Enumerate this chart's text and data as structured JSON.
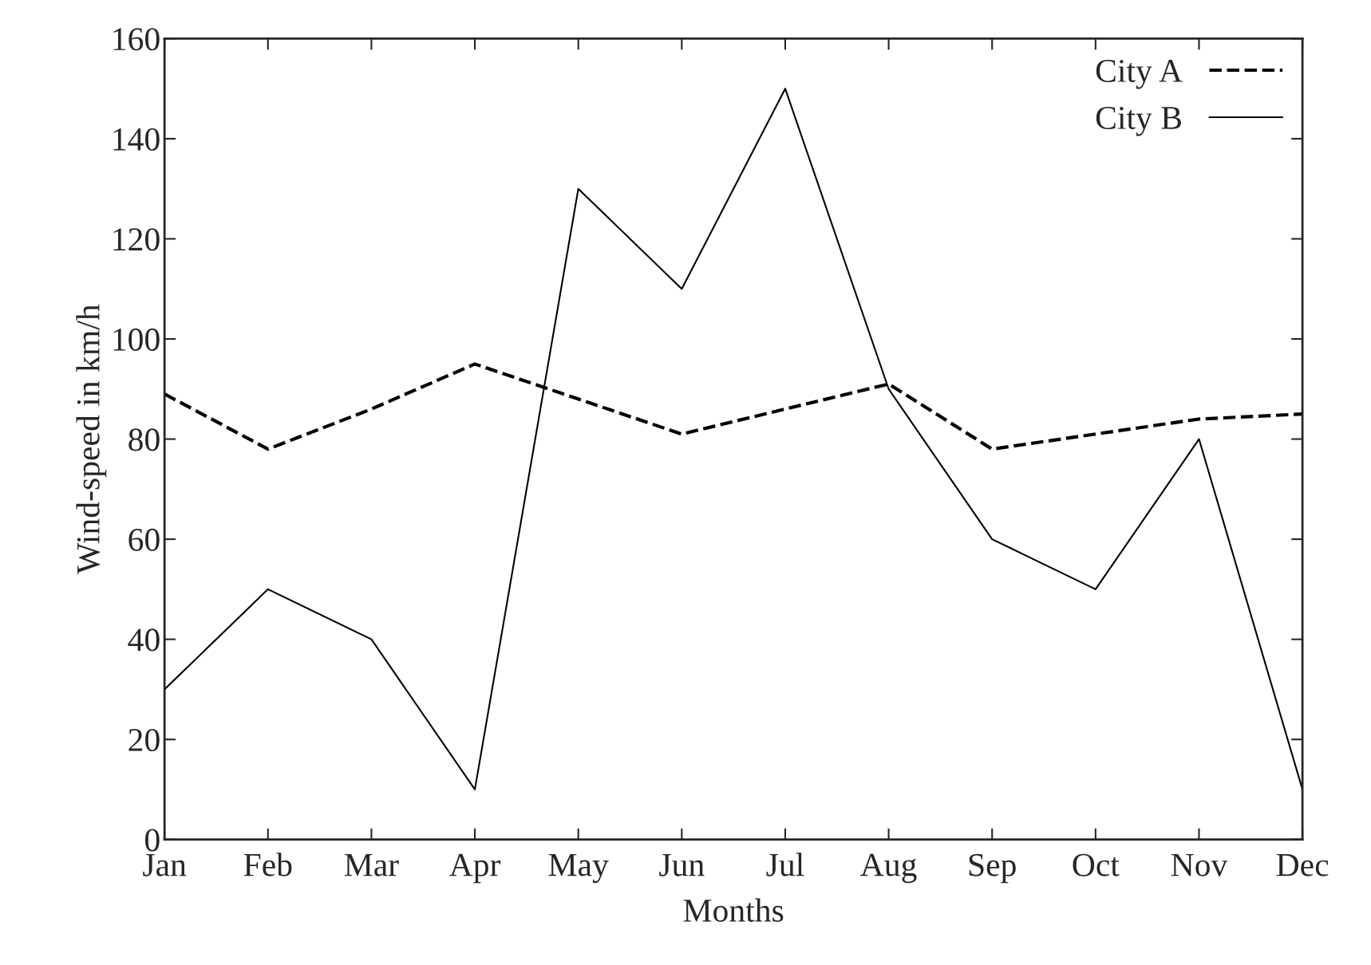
{
  "chart_data": {
    "type": "line",
    "xlabel": "Months",
    "ylabel": "Wind-speed in km/h",
    "categories": [
      "Jan",
      "Feb",
      "Mar",
      "Apr",
      "May",
      "Jun",
      "Jul",
      "Aug",
      "Sep",
      "Oct",
      "Nov",
      "Dec"
    ],
    "series": [
      {
        "name": "City A",
        "color": "#000000",
        "line_style": "dashed",
        "values": [
          89,
          78,
          86,
          95,
          88,
          81,
          86,
          91,
          78,
          81,
          84,
          85
        ]
      },
      {
        "name": "City B",
        "color": "#000000",
        "line_style": "solid",
        "values": [
          30,
          50,
          40,
          10,
          130,
          110,
          150,
          90,
          60,
          50,
          80,
          10
        ]
      }
    ],
    "ylim": [
      0,
      160
    ],
    "yticks": [
      0,
      20,
      40,
      60,
      80,
      100,
      120,
      140,
      160
    ],
    "grid": false,
    "legend": "top right",
    "marker": "none"
  }
}
